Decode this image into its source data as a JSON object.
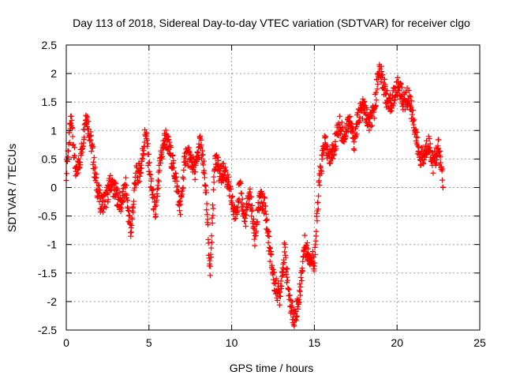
{
  "chart_data": {
    "type": "scatter",
    "title": "Day 113 of 2018, Sidereal Day-to-day VTEC variation (SDTVAR) for receiver clgo",
    "xlabel": "GPS time / hours",
    "ylabel": "SDTVAR / TECUs",
    "xlim": [
      0,
      25
    ],
    "ylim": [
      -2.5,
      2.5
    ],
    "x_ticks": [
      "0",
      "5",
      "10",
      "15",
      "20",
      "25"
    ],
    "y_ticks": [
      "-2.5",
      "-2",
      "-1.5",
      "-1",
      "-0.5",
      "0",
      "0.5",
      "1",
      "1.5",
      "2",
      "2.5"
    ],
    "grid": true,
    "marker": "+",
    "marker_color": "#ff0000",
    "series": [
      {
        "name": "SDTVAR",
        "x": [
          0.0,
          0.3,
          0.6,
          0.9,
          1.2,
          1.5,
          1.8,
          2.1,
          2.4,
          2.7,
          3.0,
          3.3,
          3.6,
          3.9,
          4.2,
          4.5,
          4.8,
          5.1,
          5.4,
          5.7,
          6.0,
          6.3,
          6.6,
          6.9,
          7.2,
          7.5,
          7.8,
          8.1,
          8.4,
          8.7,
          9.0,
          9.3,
          9.6,
          9.9,
          10.2,
          10.5,
          10.8,
          11.1,
          11.4,
          11.7,
          12.0,
          12.3,
          12.6,
          12.9,
          13.2,
          13.5,
          13.8,
          14.1,
          14.4,
          14.7,
          15.0,
          15.3,
          15.6,
          15.9,
          16.2,
          16.5,
          16.8,
          17.1,
          17.4,
          17.7,
          18.0,
          18.3,
          18.6,
          18.9,
          19.2,
          19.5,
          19.8,
          20.1,
          20.4,
          20.7,
          21.0,
          21.3,
          21.6,
          21.9,
          22.2,
          22.5,
          22.8
        ],
        "y": [
          0.3,
          1.2,
          0.2,
          0.6,
          1.3,
          0.8,
          0.1,
          -0.3,
          -0.2,
          0.1,
          -0.1,
          -0.3,
          0.0,
          -0.8,
          0.2,
          0.3,
          1.0,
          0.1,
          -0.5,
          0.5,
          0.9,
          0.6,
          0.2,
          -0.4,
          0.6,
          0.5,
          0.3,
          0.8,
          0.1,
          -1.5,
          0.6,
          0.2,
          0.3,
          -0.1,
          -0.5,
          0.0,
          -0.6,
          -0.1,
          -0.9,
          -0.2,
          -0.3,
          -1.1,
          -1.7,
          -1.9,
          -1.1,
          -2.0,
          -2.3,
          -1.9,
          -1.0,
          -1.2,
          -1.3,
          0.1,
          0.8,
          0.5,
          0.7,
          1.1,
          0.9,
          1.2,
          0.8,
          1.3,
          1.4,
          1.1,
          1.3,
          2.1,
          1.8,
          1.4,
          1.6,
          1.8,
          1.5,
          1.6,
          1.2,
          0.6,
          0.5,
          0.8,
          0.4,
          0.7,
          0.1
        ]
      }
    ]
  }
}
